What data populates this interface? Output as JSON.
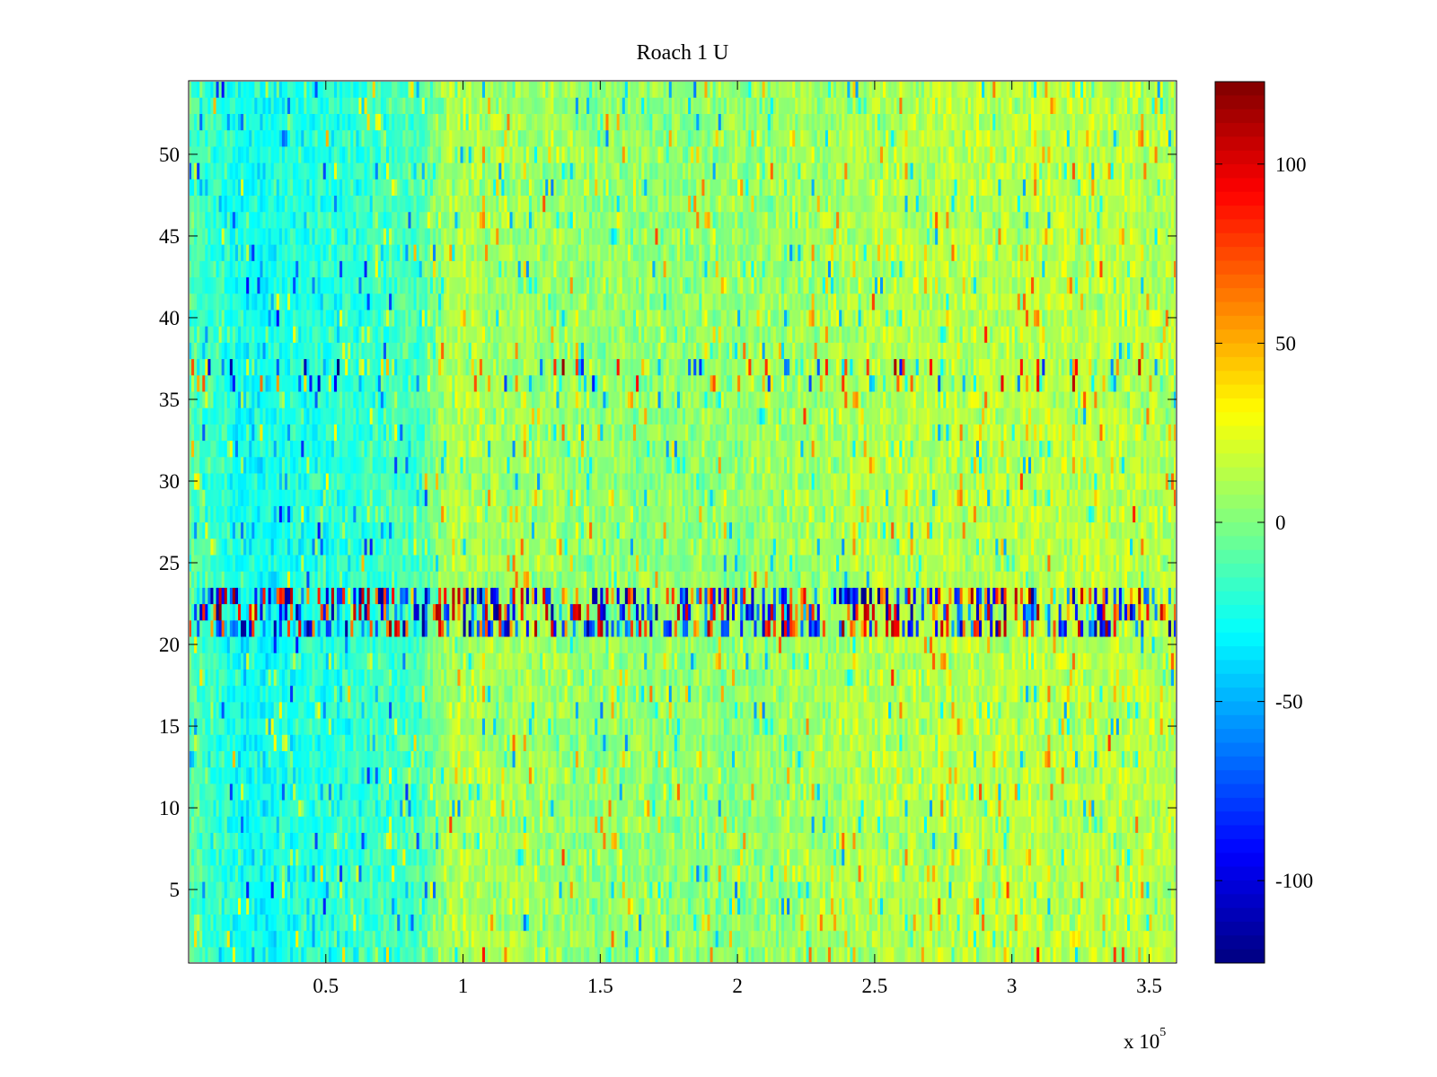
{
  "chart_data": {
    "type": "heatmap",
    "title": "Roach 1 U",
    "xlabel": "",
    "ylabel": "",
    "x_multiplier": {
      "base": "x 10",
      "exponent": "5"
    },
    "xlim": [
      0,
      360000
    ],
    "ylim": [
      0.5,
      54.5
    ],
    "x_ticks": [
      {
        "value": 50000,
        "label": "0.5"
      },
      {
        "value": 100000,
        "label": "1"
      },
      {
        "value": 150000,
        "label": "1.5"
      },
      {
        "value": 200000,
        "label": "2"
      },
      {
        "value": 250000,
        "label": "2.5"
      },
      {
        "value": 300000,
        "label": "3"
      },
      {
        "value": 350000,
        "label": "3.5"
      }
    ],
    "y_ticks": [
      {
        "value": 5,
        "label": "5"
      },
      {
        "value": 10,
        "label": "10"
      },
      {
        "value": 15,
        "label": "15"
      },
      {
        "value": 20,
        "label": "20"
      },
      {
        "value": 25,
        "label": "25"
      },
      {
        "value": 30,
        "label": "30"
      },
      {
        "value": 35,
        "label": "35"
      },
      {
        "value": 40,
        "label": "40"
      },
      {
        "value": 45,
        "label": "45"
      },
      {
        "value": 50,
        "label": "50"
      }
    ],
    "colorbar": {
      "colormap": "jet",
      "range": [
        -123,
        123
      ],
      "ticks": [
        {
          "value": 100,
          "label": "100"
        },
        {
          "value": 50,
          "label": "50"
        },
        {
          "value": 0,
          "label": "0"
        },
        {
          "value": -50,
          "label": "-50"
        },
        {
          "value": -100,
          "label": "-100"
        }
      ]
    },
    "rows": 54,
    "approx_profile": {
      "time_trend_x": [
        0,
        20000,
        50000,
        85000,
        95000,
        150000,
        200000,
        250000,
        300000,
        350000,
        360000
      ],
      "time_trend_value": [
        -10,
        -28,
        -22,
        -12,
        12,
        4,
        4,
        12,
        14,
        14,
        12
      ],
      "high_variance_rows": [
        21,
        22,
        23
      ],
      "spiky_rows": [
        36,
        37
      ]
    }
  }
}
